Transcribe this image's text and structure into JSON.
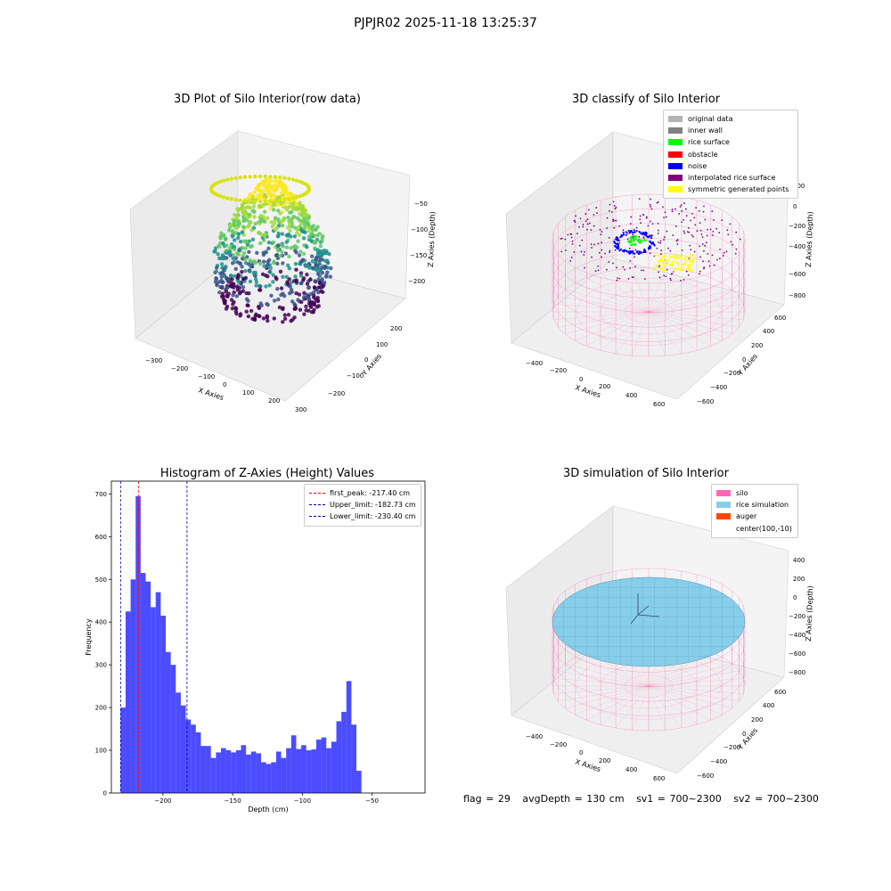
{
  "suptitle": "PJPJR02 2025-11-18 13:25:37",
  "footer": {
    "flag": "flag = 29",
    "avg_depth": "avgDepth = 130 cm",
    "sv1": "sv1 = 700~2300",
    "sv2": "sv2 = 700~2300"
  },
  "panel1": {
    "title": "3D Plot of Silo Interior(row data)",
    "xlabel": "X Axies",
    "ylabel": "Y Axies",
    "zlabel": "Z Axies (Depth)",
    "xticks": [
      "−300",
      "−200",
      "−100",
      "0",
      "100",
      "200",
      "300"
    ],
    "yticks": [
      "−200",
      "−100",
      "0",
      "100",
      "200"
    ],
    "zticks": [
      "−50",
      "−100",
      "−150",
      "−200"
    ]
  },
  "panel2": {
    "title": "3D classify of Silo Interior",
    "xlabel": "X Axies",
    "ylabel": "Y Axies",
    "zlabel": "Z Axies (Depth)",
    "xticks": [
      "−400",
      "−200",
      "0",
      "200",
      "400",
      "600"
    ],
    "yticks": [
      "−600",
      "−400",
      "−200",
      "0",
      "200",
      "400",
      "600"
    ],
    "zticks": [
      "200",
      "0",
      "−200",
      "−400",
      "−600",
      "−800"
    ],
    "legend": [
      {
        "label": "original data",
        "color": "#b3b3b3"
      },
      {
        "label": "inner wall",
        "color": "#808080"
      },
      {
        "label": "rice surface",
        "color": "#00ff00"
      },
      {
        "label": "obstacle",
        "color": "#ff0000"
      },
      {
        "label": "noise",
        "color": "#0000ff"
      },
      {
        "label": "interpolated rice surface",
        "color": "#800080"
      },
      {
        "label": "symmetric generated points",
        "color": "#ffff00"
      }
    ]
  },
  "panel4": {
    "title": "3D simulation of Silo Interior",
    "xlabel": "X Axies",
    "ylabel": "Y Axies",
    "zlabel": "Z Axies (Depth)",
    "xticks": [
      "−400",
      "−200",
      "0",
      "200",
      "400",
      "600"
    ],
    "yticks": [
      "−600",
      "−400",
      "−200",
      "0",
      "200",
      "400",
      "600"
    ],
    "zticks": [
      "400",
      "200",
      "0",
      "−200",
      "−400",
      "−600",
      "−800"
    ],
    "legend": [
      {
        "label": "silo",
        "color": "#ff69b4"
      },
      {
        "label": "rice simulation",
        "color": "#87ceeb"
      },
      {
        "label": "auger",
        "color": "#ff4500"
      },
      {
        "label": "center(100,-10)",
        "color": ""
      }
    ]
  },
  "chart_data": [
    {
      "type": "bar",
      "title": "Histogram of Z-Axies (Height) Values",
      "xlabel": "Depth (cm)",
      "ylabel": "Frequency",
      "xlim": [
        -237,
        -12
      ],
      "ylim": [
        0,
        730
      ],
      "xticks": [
        -200,
        -150,
        -100,
        -50
      ],
      "yticks": [
        0,
        100,
        200,
        300,
        400,
        500,
        600,
        700
      ],
      "bar_color": "#0000ff",
      "bins_start": -230.4,
      "bin_width": 3.6,
      "values": [
        200,
        425,
        500,
        695,
        515,
        495,
        435,
        470,
        415,
        330,
        300,
        235,
        205,
        172,
        160,
        142,
        110,
        110,
        82,
        95,
        105,
        100,
        95,
        100,
        112,
        90,
        97,
        93,
        72,
        68,
        72,
        97,
        82,
        105,
        135,
        103,
        112,
        100,
        102,
        125,
        130,
        105,
        120,
        168,
        190,
        262,
        160,
        52
      ],
      "legend": [
        {
          "label": "first_peak: -217.40 cm",
          "color": "#ff0000",
          "x": -217.4
        },
        {
          "label": "Upper_limit: -182.73 cm",
          "color": "#0000aa",
          "x": -182.73
        },
        {
          "label": "Lower_limit: -230.40 cm",
          "color": "#0000aa",
          "x": -230.4
        }
      ],
      "legend_position": "top-right",
      "grid": false
    }
  ]
}
